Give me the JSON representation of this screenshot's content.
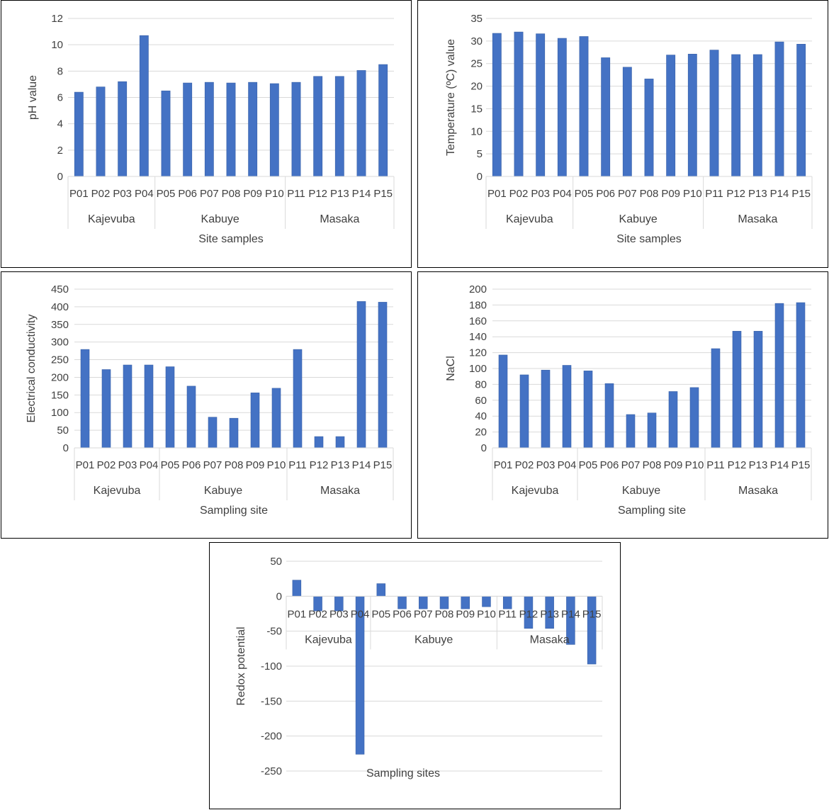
{
  "chart_data": [
    {
      "type": "bar",
      "xlabel": "Site samples",
      "ylabel": "pH value",
      "ylim": [
        0,
        12
      ],
      "ystep": 2,
      "grid": true,
      "categories": [
        "P01",
        "P02",
        "P03",
        "P04",
        "P05",
        "P06",
        "P07",
        "P08",
        "P09",
        "P10",
        "P11",
        "P12",
        "P13",
        "P14",
        "P15"
      ],
      "groups": [
        {
          "name": "Kajevuba",
          "count": 4
        },
        {
          "name": "Kabuye",
          "count": 6
        },
        {
          "name": "Masaka",
          "count": 5
        }
      ],
      "values": [
        6.4,
        6.8,
        7.2,
        10.7,
        6.5,
        7.1,
        7.15,
        7.1,
        7.15,
        7.05,
        7.15,
        7.6,
        7.6,
        8.05,
        8.5
      ],
      "color": "#4472c4"
    },
    {
      "type": "bar",
      "xlabel": "Site samples",
      "ylabel": "Temperature (ºC) value",
      "ylim": [
        0,
        35
      ],
      "ystep": 5,
      "grid": true,
      "categories": [
        "P01",
        "P02",
        "P03",
        "P04",
        "P05",
        "P06",
        "P07",
        "P08",
        "P09",
        "P10",
        "P11",
        "P12",
        "P13",
        "P14",
        "P15"
      ],
      "groups": [
        {
          "name": "Kajevuba",
          "count": 4
        },
        {
          "name": "Kabuye",
          "count": 6
        },
        {
          "name": "Masaka",
          "count": 5
        }
      ],
      "values": [
        31.7,
        32.0,
        31.6,
        30.6,
        31.0,
        26.3,
        24.2,
        21.6,
        26.9,
        27.1,
        28.0,
        27.0,
        27.0,
        29.8,
        29.3
      ],
      "color": "#4472c4"
    },
    {
      "type": "bar",
      "xlabel": "Sampling site",
      "ylabel": "Electrical conductivity",
      "ylim": [
        0,
        450
      ],
      "ystep": 50,
      "grid": true,
      "categories": [
        "P01",
        "P02",
        "P03",
        "P04",
        "P05",
        "P06",
        "P07",
        "P08",
        "P09",
        "P10",
        "P11",
        "P12",
        "P13",
        "P14",
        "P15"
      ],
      "groups": [
        {
          "name": "Kajevuba",
          "count": 4
        },
        {
          "name": "Kabuye",
          "count": 6
        },
        {
          "name": "Masaka",
          "count": 5
        }
      ],
      "values": [
        279,
        222,
        235,
        235,
        230,
        175,
        87,
        84,
        156,
        169,
        279,
        32,
        32,
        415,
        413
      ],
      "color": "#4472c4"
    },
    {
      "type": "bar",
      "xlabel": "Sampling site",
      "ylabel": "NaCl",
      "ylim": [
        0,
        200
      ],
      "ystep": 20,
      "grid": true,
      "categories": [
        "P01",
        "P02",
        "P03",
        "P04",
        "P05",
        "P06",
        "P07",
        "P08",
        "P09",
        "P10",
        "P11",
        "P12",
        "P13",
        "P14",
        "P15"
      ],
      "groups": [
        {
          "name": "Kajevuba",
          "count": 4
        },
        {
          "name": "Kabuye",
          "count": 6
        },
        {
          "name": "Masaka",
          "count": 5
        }
      ],
      "values": [
        117,
        92,
        98,
        104,
        97,
        81,
        42,
        44,
        71,
        76,
        125,
        147,
        147,
        182,
        183
      ],
      "color": "#4472c4"
    },
    {
      "type": "bar",
      "xlabel": "Sampling sites",
      "ylabel": "Redox potential",
      "ylim": [
        -250,
        50
      ],
      "ystep": 50,
      "grid": true,
      "categories": [
        "P01",
        "P02",
        "P03",
        "P04",
        "P05",
        "P06",
        "P07",
        "P08",
        "P09",
        "P10",
        "P11",
        "P12",
        "P13",
        "P14",
        "P15"
      ],
      "groups": [
        {
          "name": "Kajevuba",
          "count": 4
        },
        {
          "name": "Kabuye",
          "count": 6
        },
        {
          "name": "Masaka",
          "count": 5
        }
      ],
      "values": [
        23,
        -21,
        -21,
        -226,
        18,
        -18,
        -18,
        -18,
        -18,
        -15,
        -18,
        -46,
        -46,
        -69,
        -97
      ],
      "color": "#4472c4"
    }
  ]
}
